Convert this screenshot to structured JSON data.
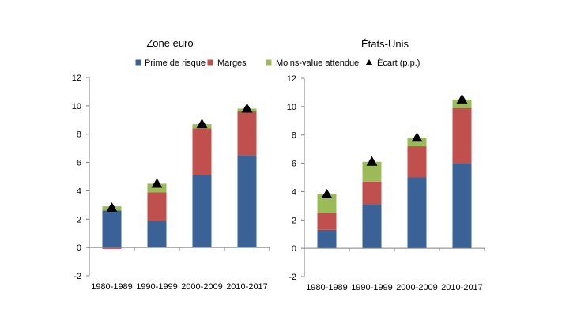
{
  "legend": {
    "items": [
      {
        "label": "Prime de risque",
        "color": "#3a6296",
        "marker": "square"
      },
      {
        "label": "Marges",
        "color": "#c0504d",
        "marker": "square"
      },
      {
        "label": "Moins-value attendue",
        "color": "#9bbb59",
        "marker": "square"
      },
      {
        "label": "Écart (p.p.)",
        "color": "#000000",
        "marker": "triangle"
      }
    ]
  },
  "chart_data": [
    {
      "type": "bar",
      "stacked": true,
      "title": "Zone euro",
      "categories": [
        "1980-1989",
        "1990-1999",
        "2000-2009",
        "2010-2017"
      ],
      "series": [
        {
          "name": "Prime de risque",
          "values": [
            2.6,
            1.9,
            5.1,
            6.5
          ],
          "color": "#3a6296"
        },
        {
          "name": "Marges",
          "values": [
            -0.1,
            2.0,
            3.3,
            3.1
          ],
          "color": "#c0504d"
        },
        {
          "name": "Moins-value attendue",
          "values": [
            0.3,
            0.6,
            0.3,
            0.2
          ],
          "color": "#9bbb59"
        }
      ],
      "markers": {
        "name": "Écart (p.p.)",
        "values": [
          2.8,
          4.5,
          8.7,
          9.8
        ]
      },
      "ylim": [
        -2,
        12
      ],
      "yticks": [
        -2,
        0,
        2,
        4,
        6,
        8,
        10,
        12
      ],
      "grid": false
    },
    {
      "type": "bar",
      "stacked": true,
      "title": "États-Unis",
      "categories": [
        "1980-1989",
        "1990-1999",
        "2000-2009",
        "2010-2017"
      ],
      "series": [
        {
          "name": "Prime de risque",
          "values": [
            1.3,
            3.1,
            5.0,
            6.0
          ],
          "color": "#3a6296"
        },
        {
          "name": "Marges",
          "values": [
            1.2,
            1.6,
            2.2,
            3.9
          ],
          "color": "#c0504d"
        },
        {
          "name": "Moins-value attendue",
          "values": [
            1.3,
            1.4,
            0.6,
            0.6
          ],
          "color": "#9bbb59"
        }
      ],
      "markers": {
        "name": "Écart (p.p.)",
        "values": [
          3.8,
          6.1,
          7.8,
          10.5
        ]
      },
      "ylim": [
        -2,
        12
      ],
      "yticks": [
        -2,
        0,
        2,
        4,
        6,
        8,
        10,
        12
      ],
      "grid": false
    }
  ]
}
